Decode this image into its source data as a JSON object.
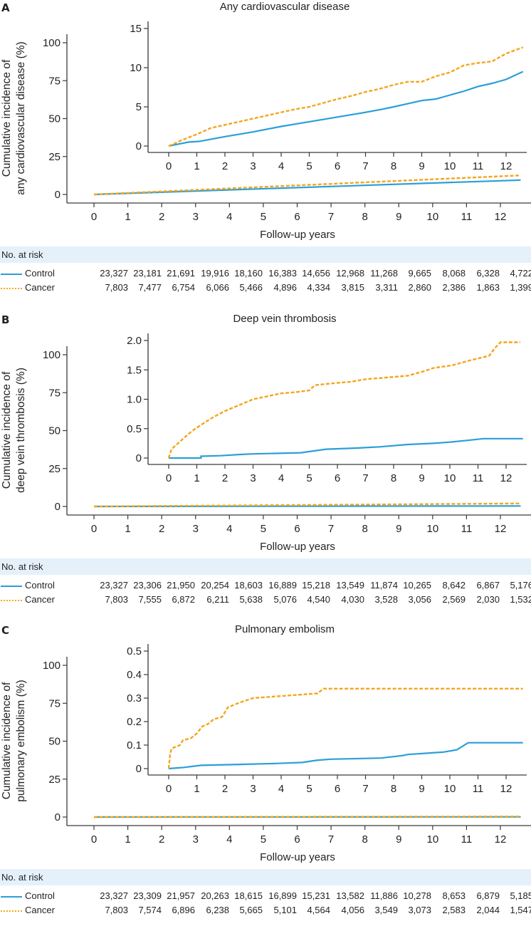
{
  "chart_data": [
    {
      "type": "line",
      "panel_label": "A",
      "title": "Any cardiovascular disease",
      "ylabel": [
        "Cumulative incidence of",
        "any cardiovascular disease (%)"
      ],
      "xlabel": "Follow-up years",
      "main": {
        "xlim": [
          0,
          12.6
        ],
        "ylim": [
          0,
          100
        ],
        "xticks": [
          "0",
          "1",
          "2",
          "3",
          "4",
          "5",
          "6",
          "7",
          "8",
          "9",
          "10",
          "11",
          "12"
        ],
        "yticks": [
          "0",
          "25",
          "50",
          "75",
          "100"
        ],
        "series": [
          {
            "name": "Control",
            "x": [
              0,
              12.6
            ],
            "y": [
              0,
              9.5
            ]
          },
          {
            "name": "Cancer",
            "x": [
              0,
              12.6
            ],
            "y": [
              0,
              12.6
            ]
          }
        ]
      },
      "inset": {
        "xlim": [
          0,
          12.6
        ],
        "ylim": [
          0,
          15
        ],
        "xticks": [
          "0",
          "1",
          "2",
          "3",
          "4",
          "5",
          "6",
          "7",
          "8",
          "9",
          "10",
          "11",
          "12"
        ],
        "yticks": [
          "0",
          "5",
          "10",
          "15"
        ],
        "series": [
          {
            "name": "Control",
            "x": [
              0,
              0.7,
              1.1,
              2,
              3,
              4,
              4.5,
              5,
              6,
              7,
              7.6,
              8,
              8.5,
              9,
              9.5,
              10,
              10.5,
              11,
              11.5,
              12,
              12.6
            ],
            "y": [
              0,
              0.5,
              0.6,
              1.2,
              1.8,
              2.5,
              2.8,
              3.1,
              3.7,
              4.3,
              4.7,
              5.0,
              5.4,
              5.8,
              6.0,
              6.5,
              7.0,
              7.6,
              8.0,
              8.5,
              9.5
            ]
          },
          {
            "name": "Cancer",
            "x": [
              0,
              0.5,
              1,
              1.5,
              2,
              3,
              3.5,
              4,
              4.5,
              5,
              5.5,
              6,
              6.5,
              7,
              7.5,
              8,
              8.5,
              9,
              9.5,
              10,
              10.5,
              11,
              11.5,
              12,
              12.6
            ],
            "y": [
              0,
              0.8,
              1.5,
              2.3,
              2.7,
              3.5,
              3.9,
              4.3,
              4.7,
              5.0,
              5.5,
              6.0,
              6.4,
              6.9,
              7.3,
              7.8,
              8.2,
              8.2,
              8.9,
              9.4,
              10.3,
              10.6,
              10.8,
              11.8,
              12.6
            ]
          }
        ]
      },
      "risk_table": {
        "header": "No. at risk",
        "rows": [
          {
            "name": "Control",
            "values": [
              "23,327",
              "23,181",
              "21,691",
              "19,916",
              "18,160",
              "16,383",
              "14,656",
              "12,968",
              "11,268",
              "9,665",
              "8,068",
              "6,328",
              "4,722"
            ]
          },
          {
            "name": "Cancer",
            "values": [
              "7,803",
              "7,477",
              "6,754",
              "6,066",
              "5,466",
              "4,896",
              "4,334",
              "3,815",
              "3,311",
              "2,860",
              "2,386",
              "1,863",
              "1,399"
            ]
          }
        ]
      }
    },
    {
      "type": "line",
      "panel_label": "B",
      "title": "Deep vein thrombosis",
      "ylabel": [
        "Cumulative incidence of",
        "deep vein thrombosis (%)"
      ],
      "xlabel": "Follow-up years",
      "main": {
        "xlim": [
          0,
          12.6
        ],
        "ylim": [
          0,
          100
        ],
        "xticks": [
          "0",
          "1",
          "2",
          "3",
          "4",
          "5",
          "6",
          "7",
          "8",
          "9",
          "10",
          "11",
          "12"
        ],
        "yticks": [
          "0",
          "25",
          "50",
          "75",
          "100"
        ],
        "series": [
          {
            "name": "Control",
            "x": [
              0,
              12.6
            ],
            "y": [
              0,
              0.35
            ]
          },
          {
            "name": "Cancer",
            "x": [
              0,
              12.6
            ],
            "y": [
              0,
              1.95
            ]
          }
        ]
      },
      "inset": {
        "xlim": [
          0,
          12.6
        ],
        "ylim": [
          0,
          2.0
        ],
        "xticks": [
          "0",
          "1",
          "2",
          "3",
          "4",
          "5",
          "6",
          "7",
          "8",
          "9",
          "10",
          "11",
          "12"
        ],
        "yticks": [
          "0",
          "0.5",
          "1.0",
          "1.5",
          "2.0"
        ],
        "series": [
          {
            "name": "Control",
            "x": [
              0,
              1.15,
              1.15,
              1.85,
              2.5,
              3,
              4.7,
              5.6,
              6.7,
              7.5,
              8.5,
              9.4,
              10,
              10.6,
              11.2,
              12.6
            ],
            "y": [
              0,
              0,
              0.03,
              0.04,
              0.06,
              0.07,
              0.09,
              0.15,
              0.17,
              0.19,
              0.23,
              0.25,
              0.27,
              0.3,
              0.33,
              0.33
            ]
          },
          {
            "name": "Cancer",
            "x": [
              0,
              0.1,
              0.4,
              0.8,
              1.2,
              1.6,
              2,
              2.5,
              3,
              3.5,
              4,
              4.5,
              5,
              5.2,
              5.6,
              6.5,
              7,
              7.5,
              8.5,
              9.1,
              9.4,
              10.1,
              10.7,
              11.4,
              11.6,
              11.8,
              12.5
            ],
            "y": [
              0,
              0.15,
              0.28,
              0.45,
              0.58,
              0.7,
              0.8,
              0.9,
              1.0,
              1.05,
              1.1,
              1.12,
              1.15,
              1.24,
              1.26,
              1.3,
              1.34,
              1.36,
              1.4,
              1.48,
              1.53,
              1.58,
              1.66,
              1.74,
              1.87,
              1.97,
              1.97
            ]
          }
        ]
      },
      "risk_table": {
        "header": "No. at risk",
        "rows": [
          {
            "name": "Control",
            "values": [
              "23,327",
              "23,306",
              "21,950",
              "20,254",
              "18,603",
              "16,889",
              "15,218",
              "13,549",
              "11,874",
              "10,265",
              "8,642",
              "6,867",
              "5,176"
            ]
          },
          {
            "name": "Cancer",
            "values": [
              "7,803",
              "7,555",
              "6,872",
              "6,211",
              "5,638",
              "5,076",
              "4,540",
              "4,030",
              "3,528",
              "3,056",
              "2,569",
              "2,030",
              "1,532"
            ]
          }
        ]
      }
    },
    {
      "type": "line",
      "panel_label": "C",
      "title": "Pulmonary embolism",
      "ylabel": [
        "Cumulative incidence of",
        "pulmonary embolism (%)"
      ],
      "xlabel": "Follow-up years",
      "main": {
        "xlim": [
          0,
          12.6
        ],
        "ylim": [
          0,
          100
        ],
        "xticks": [
          "0",
          "1",
          "2",
          "3",
          "4",
          "5",
          "6",
          "7",
          "8",
          "9",
          "10",
          "11",
          "12"
        ],
        "yticks": [
          "0",
          "25",
          "50",
          "75",
          "100"
        ],
        "series": [
          {
            "name": "Control",
            "x": [
              0,
              12.6
            ],
            "y": [
              0,
              0.11
            ]
          },
          {
            "name": "Cancer",
            "x": [
              0,
              12.6
            ],
            "y": [
              0,
              0.34
            ]
          }
        ]
      },
      "inset": {
        "xlim": [
          0,
          12.6
        ],
        "ylim": [
          0,
          0.5
        ],
        "xticks": [
          "0",
          "1",
          "2",
          "3",
          "4",
          "5",
          "6",
          "7",
          "8",
          "9",
          "10",
          "11",
          "12"
        ],
        "yticks": [
          "0",
          "0.1",
          "0.2",
          "0.3",
          "0.4",
          "0.5"
        ],
        "series": [
          {
            "name": "Control",
            "x": [
              0,
              0.55,
              1.15,
              2.55,
              3.9,
              4.75,
              5.25,
              5.75,
              7.55,
              8.3,
              8.5,
              9.75,
              10.25,
              10.65,
              12.6
            ],
            "y": [
              0,
              0.005,
              0.014,
              0.018,
              0.022,
              0.026,
              0.035,
              0.04,
              0.045,
              0.055,
              0.06,
              0.07,
              0.08,
              0.11,
              0.11
            ]
          },
          {
            "name": "Cancer",
            "x": [
              0,
              0.05,
              0.1,
              0.4,
              0.5,
              0.8,
              1,
              1.2,
              1.4,
              1.6,
              1.9,
              2.1,
              2.5,
              3,
              5.3,
              5.5,
              12.6
            ],
            "y": [
              0,
              0.06,
              0.085,
              0.1,
              0.12,
              0.13,
              0.15,
              0.18,
              0.19,
              0.21,
              0.22,
              0.26,
              0.28,
              0.3,
              0.32,
              0.34,
              0.34
            ]
          }
        ]
      },
      "risk_table": {
        "header": "No. at risk",
        "rows": [
          {
            "name": "Control",
            "values": [
              "23,327",
              "23,309",
              "21,957",
              "20,263",
              "18,615",
              "16,899",
              "15,231",
              "13,582",
              "11,886",
              "10,278",
              "8,653",
              "6,879",
              "5,185"
            ]
          },
          {
            "name": "Cancer",
            "values": [
              "7,803",
              "7,574",
              "6,896",
              "6,238",
              "5,665",
              "5,101",
              "4,564",
              "4,056",
              "3,549",
              "3,073",
              "2,583",
              "2,044",
              "1,547"
            ]
          }
        ]
      }
    }
  ],
  "colors": {
    "control": "#2a9fd8",
    "cancer": "#f5a51c",
    "risk_header_bg": "#e5f1fa"
  }
}
